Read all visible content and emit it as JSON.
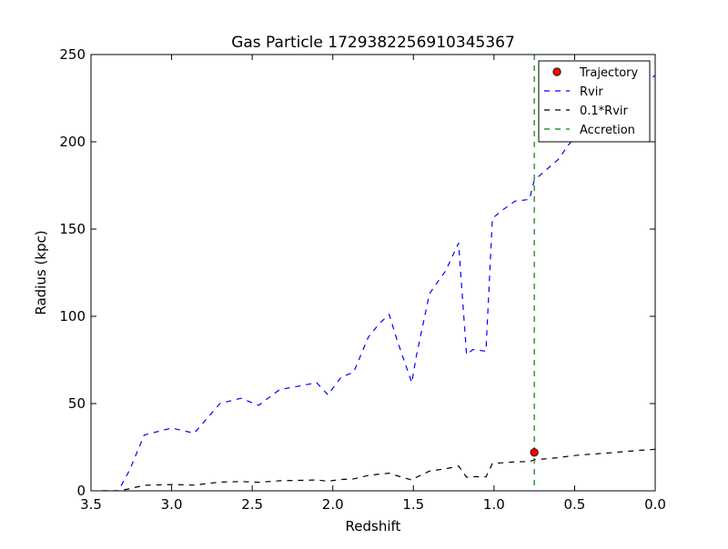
{
  "chart_data": {
    "type": "line",
    "title": "Gas Particle 1729382256910345367",
    "xlabel": "Redshift",
    "ylabel": "Radius (kpc)",
    "xlim": [
      3.5,
      0.0
    ],
    "ylim": [
      0,
      250
    ],
    "x_ticks": [
      3.5,
      3.0,
      2.5,
      2.0,
      1.5,
      1.0,
      0.5,
      0.0
    ],
    "x_tick_labels": [
      "3.5",
      "3.0",
      "2.5",
      "2.0",
      "1.5",
      "1.0",
      "0.5",
      "0.0"
    ],
    "y_ticks": [
      0,
      50,
      100,
      150,
      200,
      250
    ],
    "y_tick_labels": [
      "0",
      "50",
      "100",
      "150",
      "200",
      "250"
    ],
    "legend_position": "top-right",
    "grid": false,
    "legend": [
      {
        "label": "Trajectory",
        "kind": "marker",
        "color": "#ff0000"
      },
      {
        "label": "Rvir",
        "kind": "dashed",
        "color": "#0000ff"
      },
      {
        "label": "0.1*Rvir",
        "kind": "dashed",
        "color": "#000000"
      },
      {
        "label": "Accretion",
        "kind": "dashed",
        "color": "#008000"
      }
    ],
    "series": [
      {
        "name": "Rvir",
        "style": "dashed",
        "color": "#0000ff",
        "x": [
          3.43,
          3.33,
          3.26,
          3.17,
          3.0,
          2.86,
          2.7,
          2.57,
          2.46,
          2.33,
          2.21,
          2.1,
          2.03,
          1.95,
          1.87,
          1.78,
          1.71,
          1.65,
          1.6,
          1.51,
          1.48,
          1.4,
          1.37,
          1.3,
          1.22,
          1.17,
          1.13,
          1.05,
          1.01,
          0.96,
          0.87,
          0.78,
          0.75,
          0.7,
          0.6,
          0.54,
          0.47,
          0.4,
          0.3,
          0.2,
          0.1,
          0.0
        ],
        "y": [
          0,
          0,
          12,
          32,
          36,
          33,
          50,
          53,
          49,
          58,
          60,
          62,
          55,
          65,
          68,
          88,
          96,
          101,
          86,
          62,
          78,
          113,
          117,
          126,
          142,
          78,
          81,
          80,
          156,
          160,
          166,
          167,
          178,
          182,
          190,
          198,
          205,
          210,
          216,
          224,
          232,
          238
        ]
      },
      {
        "name": "0.1*Rvir",
        "style": "dashed",
        "color": "#000000",
        "x": [
          3.43,
          3.33,
          3.26,
          3.17,
          3.0,
          2.86,
          2.7,
          2.57,
          2.46,
          2.33,
          2.21,
          2.1,
          2.03,
          1.95,
          1.87,
          1.78,
          1.71,
          1.65,
          1.6,
          1.51,
          1.48,
          1.4,
          1.37,
          1.3,
          1.22,
          1.17,
          1.13,
          1.05,
          1.01,
          0.96,
          0.87,
          0.78,
          0.75,
          0.7,
          0.6,
          0.54,
          0.47,
          0.4,
          0.3,
          0.2,
          0.1,
          0.0
        ],
        "y": [
          0,
          0,
          1.2,
          3.2,
          3.6,
          3.3,
          5.0,
          5.3,
          4.9,
          5.8,
          6.0,
          6.2,
          5.5,
          6.5,
          6.8,
          8.8,
          9.6,
          10.1,
          8.6,
          6.2,
          7.8,
          11.3,
          11.7,
          12.6,
          14.2,
          7.8,
          8.1,
          8.0,
          15.6,
          16.0,
          16.6,
          16.7,
          17.8,
          18.2,
          19.0,
          19.8,
          20.5,
          21.0,
          21.6,
          22.4,
          23.2,
          23.8
        ]
      }
    ],
    "accretion_redshift": 0.75,
    "trajectory": [
      {
        "x": 0.75,
        "y": 22
      }
    ]
  }
}
